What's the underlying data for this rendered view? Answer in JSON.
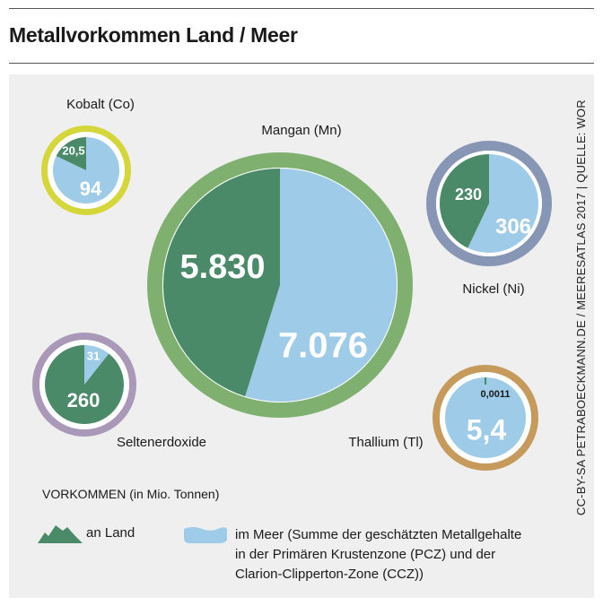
{
  "header": {
    "title": "Metallvorkommen Land / Meer"
  },
  "credit": "CC-BY-SA PETRABOECKMANN.DE / MEERESATLAS 2017 | QUELLE: WOR",
  "legend": {
    "title": "VORKOMMEN (in Mio. Tonnen)",
    "land_label": "an Land",
    "sea_label_lines": [
      "im Meer (Summe der geschätzten Metallgehalte",
      "in der Primären Krustenzone (PCZ) und der",
      "Clarion-Clipperton-Zone (CCZ))"
    ]
  },
  "colors": {
    "land": "#4a8a69",
    "sea": "#9ecbe7",
    "background": "#efefef"
  },
  "chart_data": {
    "type": "pie",
    "unit": "Mio. Tonnen",
    "series_names": [
      "an Land",
      "im Meer"
    ],
    "pies": [
      {
        "name": "Kobalt (Co)",
        "land_label": "20,5",
        "sea_label": "94",
        "land": 20.5,
        "sea": 94,
        "ring_color": "#d4d63a"
      },
      {
        "name": "Mangan (Mn)",
        "land_label": "5.830",
        "sea_label": "7.076",
        "land": 5830,
        "sea": 7076,
        "ring_color": "#7fb06f"
      },
      {
        "name": "Nickel (Ni)",
        "land_label": "230",
        "sea_label": "306",
        "land": 230,
        "sea": 306,
        "ring_color": "#8796b5"
      },
      {
        "name": "Seltenerdoxide",
        "land_label": "260",
        "sea_label": "31",
        "land": 260,
        "sea": 31,
        "ring_color": "#a998b8"
      },
      {
        "name": "Thallium (Tl)",
        "land_label": "0,0011",
        "sea_label": "5,4",
        "land": 0.0011,
        "sea": 5.4,
        "ring_color": "#c69a5a"
      }
    ]
  }
}
